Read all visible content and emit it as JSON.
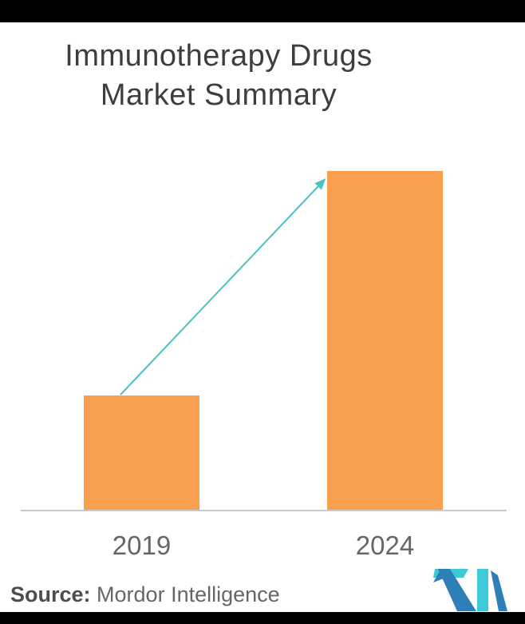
{
  "title": {
    "line1": "Immunotherapy Drugs",
    "line2": "Market Summary"
  },
  "source": {
    "label": "Source:",
    "text": "Mordor Intelligence"
  },
  "chart_data": {
    "type": "bar",
    "title": "Immunotherapy Drugs Market Summary",
    "categories": [
      "2019",
      "2024"
    ],
    "values": [
      144,
      425
    ],
    "value_unit": "relative bar height (no numeric axis or data labels shown)",
    "xlabel": "",
    "ylabel": "",
    "grid": false,
    "legend": false,
    "annotations": [
      "growth arrow from top of 2019 bar to top-left of 2024 bar"
    ],
    "bar_color": "#FA9F4D",
    "arrow_color": "#4CC2C2",
    "axis_line_color": "#C9C9C9",
    "label_color": "#666666",
    "title_color": "#3E3E3E"
  },
  "logo": {
    "name": "Mordor Intelligence monogram",
    "teal": "#3EC9D6",
    "blue": "#2E7EB8"
  },
  "frame": {
    "top_bar_color": "#000000",
    "bottom_bar_color": "#000000",
    "background": "#FFFFFF"
  }
}
